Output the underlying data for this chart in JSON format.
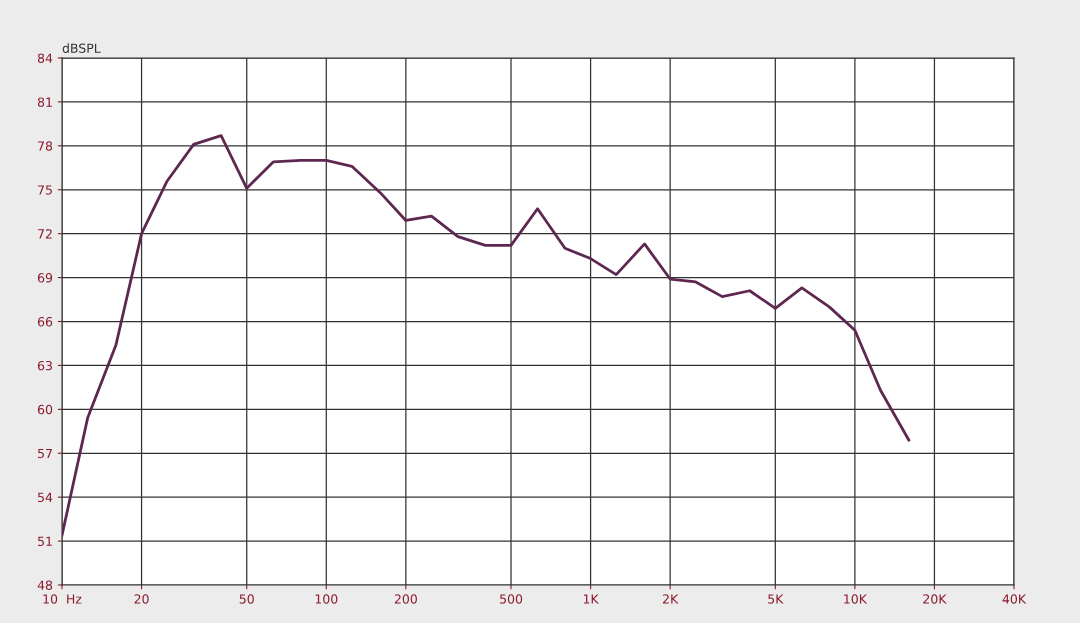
{
  "chart_data": {
    "type": "line",
    "ylabel": "dBSPL",
    "log": "x",
    "grid": true,
    "marker": "none",
    "line_style": "solid",
    "x": [
      10,
      12.5,
      16,
      20,
      25,
      31.5,
      40,
      50,
      63,
      80,
      100,
      125,
      160,
      200,
      250,
      315,
      400,
      500,
      630,
      800,
      1000,
      1250,
      1600,
      2000,
      2500,
      3150,
      4000,
      5000,
      6300,
      8000,
      10000,
      12500,
      16000
    ],
    "series": [
      {
        "color": "#5e2750",
        "values": [
          51.4,
          59.4,
          64.4,
          72.0,
          75.6,
          78.1,
          78.7,
          75.1,
          76.9,
          77.0,
          77.0,
          76.6,
          74.8,
          72.9,
          73.2,
          71.8,
          71.2,
          71.2,
          73.7,
          71.0,
          70.3,
          69.2,
          71.3,
          68.9,
          68.7,
          67.7,
          68.1,
          66.9,
          68.3,
          67.0,
          65.4,
          61.3,
          57.9
        ]
      }
    ],
    "xlim": [
      10,
      40000
    ],
    "ylim": [
      48,
      84
    ],
    "xticks": [
      {
        "value": 10,
        "label": "10  Hz"
      },
      20,
      50,
      100,
      200,
      500,
      {
        "value": 1000,
        "label": "1K"
      },
      {
        "value": 2000,
        "label": "2K"
      },
      {
        "value": 5000,
        "label": "5K"
      },
      {
        "value": 10000,
        "label": "10K"
      },
      {
        "value": 20000,
        "label": "20K"
      },
      {
        "value": 40000,
        "label": "40K"
      }
    ],
    "yticks": [
      48,
      51,
      54,
      57,
      60,
      63,
      66,
      69,
      72,
      75,
      78,
      81,
      84
    ]
  }
}
